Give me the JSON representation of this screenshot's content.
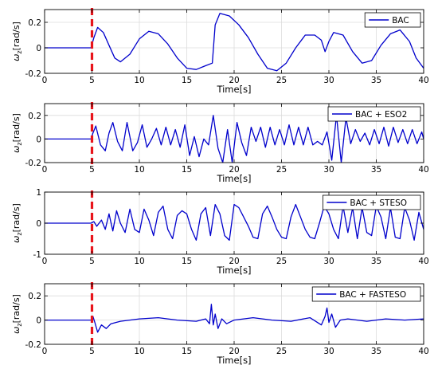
{
  "chart_data": [
    {
      "type": "line",
      "legend": "BAC",
      "legend_position": "top-right",
      "xlabel": "Time[s]",
      "ylabel_main": "ω",
      "ylabel_sub": "z",
      "ylabel_unit": "[rad/s]",
      "xlim": [
        0,
        40
      ],
      "ylim": [
        -0.2,
        0.3
      ],
      "yticks": [
        -0.2,
        0,
        0.2
      ],
      "xticks": [
        0,
        5,
        10,
        15,
        20,
        25,
        30,
        35,
        40
      ],
      "grid": true,
      "vline_x": 5,
      "color": "#0000cc",
      "vline_color": "#e8141b",
      "x": [
        0,
        4.9,
        5.2,
        5.6,
        6.2,
        6.8,
        7.4,
        8.0,
        9.0,
        10.0,
        11.0,
        12.0,
        13.0,
        14.0,
        15.0,
        16.0,
        17.0,
        17.7,
        18.0,
        18.5,
        19.5,
        20.5,
        21.5,
        22.5,
        23.5,
        24.5,
        25.5,
        26.5,
        27.5,
        28.5,
        29.2,
        29.6,
        30.0,
        30.5,
        31.5,
        32.5,
        33.5,
        34.5,
        35.5,
        36.5,
        37.5,
        38.5,
        39.2,
        40
      ],
      "y": [
        0,
        0,
        0.08,
        0.16,
        0.12,
        0.02,
        -0.08,
        -0.11,
        -0.05,
        0.07,
        0.13,
        0.11,
        0.03,
        -0.08,
        -0.16,
        -0.17,
        -0.14,
        -0.12,
        0.18,
        0.27,
        0.25,
        0.18,
        0.08,
        -0.05,
        -0.16,
        -0.18,
        -0.12,
        0.0,
        0.1,
        0.1,
        0.06,
        -0.03,
        0.05,
        0.12,
        0.1,
        -0.03,
        -0.12,
        -0.1,
        0.02,
        0.11,
        0.14,
        0.05,
        -0.08,
        -0.16
      ]
    },
    {
      "type": "line",
      "legend": "BAC + ESO2",
      "legend_position": "top-right",
      "xlabel": "Time[s]",
      "ylabel_main": "ω",
      "ylabel_sub": "z",
      "ylabel_unit": "[rad/s]",
      "xlim": [
        0,
        40
      ],
      "ylim": [
        -0.2,
        0.3
      ],
      "yticks": [
        -0.2,
        0,
        0.2
      ],
      "xticks": [
        0,
        5,
        10,
        15,
        20,
        25,
        30,
        35,
        40
      ],
      "grid": true,
      "vline_x": 5,
      "color": "#0000cc",
      "vline_color": "#e8141b",
      "x": [
        0,
        4.9,
        5.1,
        5.4,
        5.9,
        6.4,
        6.8,
        7.2,
        7.7,
        8.2,
        8.7,
        9.3,
        9.8,
        10.3,
        10.8,
        11.3,
        11.8,
        12.3,
        12.8,
        13.3,
        13.8,
        14.3,
        14.8,
        15.3,
        15.8,
        16.3,
        16.8,
        17.3,
        17.8,
        18.3,
        18.8,
        19.3,
        19.8,
        20.3,
        20.8,
        21.3,
        21.8,
        22.3,
        22.8,
        23.3,
        23.8,
        24.3,
        24.8,
        25.3,
        25.8,
        26.3,
        26.8,
        27.3,
        27.8,
        28.3,
        28.8,
        29.3,
        29.8,
        30.3,
        30.8,
        31.3,
        31.8,
        32.3,
        32.8,
        33.3,
        33.8,
        34.3,
        34.8,
        35.3,
        35.8,
        36.3,
        36.8,
        37.3,
        37.8,
        38.3,
        38.8,
        39.3,
        39.8,
        40
      ],
      "y": [
        0,
        0,
        0.05,
        0.11,
        -0.05,
        -0.1,
        0.05,
        0.14,
        -0.02,
        -0.1,
        0.14,
        -0.1,
        -0.03,
        0.12,
        -0.07,
        0.0,
        0.09,
        -0.05,
        0.1,
        -0.05,
        0.08,
        -0.07,
        0.12,
        -0.14,
        0.02,
        -0.15,
        0.0,
        -0.05,
        0.2,
        -0.08,
        -0.2,
        0.08,
        -0.2,
        0.14,
        -0.03,
        -0.14,
        0.1,
        -0.02,
        0.1,
        -0.07,
        0.1,
        -0.05,
        0.08,
        -0.05,
        0.12,
        -0.05,
        0.1,
        -0.05,
        0.1,
        -0.05,
        -0.02,
        -0.05,
        0.06,
        -0.18,
        0.2,
        -0.2,
        0.18,
        -0.04,
        0.08,
        -0.02,
        0.05,
        -0.05,
        0.08,
        -0.04,
        0.1,
        -0.06,
        0.1,
        -0.03,
        0.08,
        -0.04,
        0.08,
        -0.04,
        0.06,
        0.0
      ]
    },
    {
      "type": "line",
      "legend": "BAC + STESO",
      "legend_position": "top-right",
      "xlabel": "Time[s]",
      "ylabel_main": "ω",
      "ylabel_sub": "z",
      "ylabel_unit": "[rad/s]",
      "xlim": [
        0,
        40
      ],
      "ylim": [
        -1,
        1
      ],
      "yticks": [
        -1,
        0,
        1
      ],
      "xticks": [
        0,
        5,
        10,
        15,
        20,
        25,
        30,
        35,
        40
      ],
      "grid": true,
      "vline_x": 5,
      "color": "#0000cc",
      "vline_color": "#e8141b",
      "x": [
        0,
        4.9,
        5.2,
        5.5,
        6.0,
        6.4,
        6.8,
        7.2,
        7.6,
        8.0,
        8.5,
        9.0,
        9.5,
        10.0,
        10.5,
        11.0,
        11.5,
        12.0,
        12.5,
        13.0,
        13.5,
        14.0,
        14.5,
        15.0,
        15.5,
        16.0,
        16.5,
        17.0,
        17.5,
        18.0,
        18.5,
        19.0,
        19.5,
        20.0,
        20.5,
        21.0,
        21.5,
        22.0,
        22.5,
        23.0,
        23.5,
        24.0,
        24.5,
        25.0,
        25.5,
        26.0,
        26.5,
        27.0,
        27.5,
        28.0,
        28.5,
        29.0,
        29.5,
        30.0,
        30.5,
        31.0,
        31.5,
        32.0,
        32.5,
        33.0,
        33.5,
        34.0,
        34.5,
        35.0,
        35.5,
        36.0,
        36.5,
        37.0,
        37.5,
        38.0,
        38.5,
        39.0,
        39.5,
        40
      ],
      "y": [
        0,
        0,
        0.05,
        -0.1,
        0.1,
        -0.2,
        0.3,
        -0.25,
        0.4,
        0.0,
        -0.3,
        0.45,
        -0.2,
        -0.3,
        0.45,
        0.1,
        -0.4,
        0.35,
        0.55,
        -0.2,
        -0.5,
        0.25,
        0.4,
        0.3,
        -0.2,
        -0.55,
        0.3,
        0.5,
        -0.4,
        0.6,
        0.3,
        -0.4,
        -0.55,
        0.6,
        0.5,
        0.2,
        -0.1,
        -0.45,
        -0.5,
        0.3,
        0.55,
        0.2,
        -0.2,
        -0.45,
        -0.5,
        0.2,
        0.6,
        0.2,
        -0.2,
        -0.45,
        -0.5,
        0.0,
        0.55,
        0.3,
        -0.2,
        -0.5,
        0.55,
        -0.3,
        0.5,
        -0.5,
        0.5,
        -0.3,
        -0.4,
        0.55,
        0.2,
        -0.5,
        0.5,
        -0.45,
        -0.5,
        0.5,
        0.1,
        -0.55,
        0.35,
        -0.2
      ]
    },
    {
      "type": "line",
      "legend": "BAC + FASTESO",
      "legend_position": "top-right",
      "xlabel": "Time[s]",
      "ylabel_main": "ω",
      "ylabel_sub": "z",
      "ylabel_unit": "[rad/s]",
      "xlim": [
        0,
        40
      ],
      "ylim": [
        -0.2,
        0.3
      ],
      "yticks": [
        -0.2,
        0,
        0.2
      ],
      "xticks": [
        0,
        5,
        10,
        15,
        20,
        25,
        30,
        35,
        40
      ],
      "grid": true,
      "vline_x": 5,
      "color": "#0000cc",
      "vline_color": "#e8141b",
      "x": [
        0,
        4.9,
        5.1,
        5.3,
        5.6,
        6.0,
        6.5,
        7.0,
        8.0,
        10.0,
        12.0,
        14.0,
        16.0,
        17.0,
        17.4,
        17.6,
        17.8,
        18.0,
        18.3,
        18.7,
        19.2,
        20.0,
        22.0,
        24.0,
        26.0,
        28.0,
        29.2,
        29.6,
        29.8,
        30.0,
        30.3,
        30.7,
        31.2,
        32.0,
        34.0,
        36.0,
        38.0,
        40
      ],
      "y": [
        0,
        0,
        0.03,
        -0.02,
        -0.1,
        -0.04,
        -0.07,
        -0.03,
        -0.01,
        0.01,
        0.02,
        0.0,
        -0.01,
        0.01,
        -0.03,
        0.13,
        -0.04,
        0.05,
        -0.07,
        0.01,
        -0.03,
        0.0,
        0.02,
        0.0,
        -0.01,
        0.02,
        -0.04,
        0.03,
        0.1,
        -0.02,
        0.05,
        -0.06,
        0.0,
        0.01,
        -0.01,
        0.01,
        0.0,
        0.01
      ]
    }
  ]
}
